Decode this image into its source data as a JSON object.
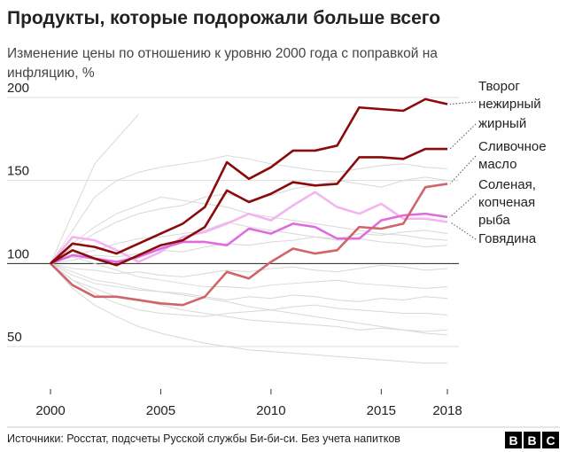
{
  "chart_data": {
    "type": "line",
    "title": "Продукты, которые подорожали больше всего",
    "subtitle": "Изменение цены по отношению к уровню 2000 года с поправкой на инфляцию, %",
    "x": [
      2000,
      2001,
      2002,
      2003,
      2004,
      2005,
      2006,
      2007,
      2008,
      2009,
      2010,
      2011,
      2012,
      2013,
      2014,
      2015,
      2016,
      2017,
      2018
    ],
    "xlim": [
      2000,
      2018
    ],
    "xticks": [
      2000,
      2005,
      2010,
      2015,
      2018
    ],
    "ylim": [
      50,
      200
    ],
    "yticks": [
      50,
      100,
      150,
      200
    ],
    "series": [
      {
        "name": "Творог нежирный",
        "color": "#8b0a0a",
        "values": [
          100,
          112,
          110,
          106,
          112,
          118,
          124,
          134,
          161,
          151,
          158,
          168,
          168,
          171,
          194,
          193,
          192,
          199,
          196
        ]
      },
      {
        "name": "жирный",
        "color": "#8b0a0a",
        "values": [
          100,
          108,
          103,
          99,
          105,
          111,
          114,
          122,
          144,
          137,
          142,
          149,
          147,
          148,
          164,
          164,
          163,
          169,
          169
        ]
      },
      {
        "name": "Сливочное масло",
        "color": "#d0646a",
        "values": [
          100,
          87,
          80,
          80,
          78,
          76,
          75,
          80,
          95,
          91,
          101,
          109,
          106,
          108,
          122,
          121,
          124,
          146,
          148
        ]
      },
      {
        "name": "Соленая, копченая рыба",
        "color": "#e06ae0",
        "values": [
          100,
          105,
          103,
          101,
          104,
          109,
          113,
          113,
          111,
          121,
          118,
          124,
          122,
          115,
          115,
          126,
          129,
          130,
          128
        ]
      },
      {
        "name": "Говядина",
        "color": "#f2b4f2",
        "values": [
          100,
          116,
          114,
          108,
          101,
          107,
          116,
          119,
          124,
          130,
          126,
          135,
          143,
          134,
          130,
          136,
          127,
          127,
          125
        ]
      }
    ],
    "background_series": [
      [
        100,
        130,
        160,
        175,
        190,
        null,
        null,
        null,
        null,
        null,
        null,
        null,
        null,
        null,
        null,
        null,
        null,
        null,
        null
      ],
      [
        100,
        95,
        90,
        88,
        85,
        83,
        82,
        80,
        78,
        80,
        79,
        81,
        80,
        78,
        77,
        79,
        78,
        80,
        79
      ],
      [
        100,
        110,
        118,
        125,
        130,
        133,
        135,
        140,
        142,
        138,
        141,
        145,
        147,
        150,
        148,
        146,
        150,
        152,
        150
      ],
      [
        100,
        90,
        85,
        80,
        78,
        75,
        72,
        70,
        68,
        66,
        65,
        64,
        63,
        62,
        60,
        61,
        60,
        59,
        60
      ],
      [
        100,
        102,
        105,
        104,
        106,
        108,
        107,
        110,
        112,
        111,
        113,
        114,
        116,
        115,
        118,
        117,
        119,
        120,
        118
      ],
      [
        100,
        93,
        88,
        86,
        84,
        83,
        81,
        79,
        77,
        74,
        72,
        70,
        68,
        66,
        64,
        62,
        60,
        58,
        57
      ],
      [
        100,
        105,
        108,
        112,
        115,
        116,
        118,
        120,
        125,
        122,
        120,
        118,
        116,
        114,
        115,
        113,
        112,
        110,
        111
      ],
      [
        100,
        85,
        75,
        68,
        62,
        58,
        55,
        52,
        50,
        48,
        47,
        46,
        45,
        44,
        43,
        42,
        41,
        40,
        40
      ],
      [
        100,
        97,
        96,
        94,
        95,
        93,
        92,
        94,
        96,
        95,
        97,
        98,
        96,
        95,
        97,
        99,
        98,
        96,
        97
      ],
      [
        100,
        112,
        122,
        130,
        135,
        140,
        138,
        136,
        134,
        130,
        128,
        126,
        124,
        122,
        120,
        118,
        117,
        115,
        114
      ],
      [
        100,
        90,
        82,
        76,
        72,
        70,
        69,
        68,
        70,
        71,
        72,
        74,
        75,
        73,
        72,
        71,
        70,
        70,
        69
      ],
      [
        100,
        104,
        100,
        96,
        92,
        90,
        88,
        86,
        86,
        85,
        87,
        88,
        89,
        90,
        88,
        87,
        86,
        85,
        86
      ],
      [
        100,
        120,
        140,
        150,
        155,
        158,
        160,
        162,
        165,
        163,
        160,
        158,
        156,
        155,
        157,
        159,
        160,
        158,
        157
      ]
    ],
    "source": "Источники: Росстат, подсчеты Русской службы Би-би-си. Без учета напитков",
    "logo": [
      "B",
      "B",
      "C"
    ]
  }
}
